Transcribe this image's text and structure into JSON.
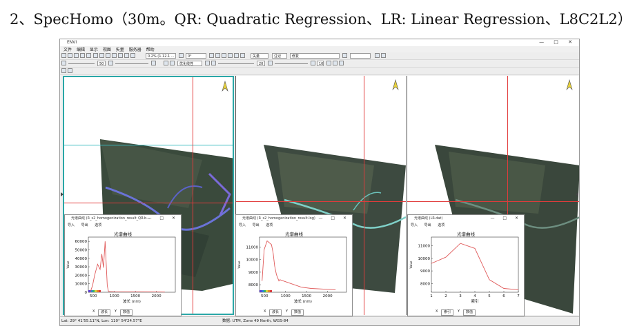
{
  "caption": "2、SpecHomo（30m。QR: Quadratic Regression、LR: Linear Regression、L8C2L2）",
  "app": {
    "title": "ENVI",
    "window_controls": "— □ ✕"
  },
  "menu": [
    "文件",
    "编辑",
    "显示",
    "视图",
    "矢量",
    "服务器",
    "帮助"
  ],
  "toolbar": {
    "coord_box": "0.2% (1.12.1 ...",
    "rotate_box": "0°",
    "zoom_box": "50",
    "stretch_box": "无拉伸",
    "layer_box": "矢量",
    "annotate_box": "注记",
    "vector_box": "修复",
    "view_box": "优化线性",
    "brightness": "50",
    "contrast": "20",
    "sharpen": "10"
  },
  "views": [
    {
      "name": "qr",
      "north_label": "N"
    },
    {
      "name": "log",
      "north_label": "N"
    },
    {
      "name": "lr",
      "north_label": "N"
    }
  ],
  "spectral_panels": [
    {
      "window_title": "光谱曲线 (R_s2_homogenization_result_QR.b...",
      "menu": [
        "导入",
        "导出",
        "选项"
      ],
      "plot_title": "光谱曲线",
      "x_label": "波长 (nm)",
      "y_label": "Value",
      "x_ticks": [
        "500",
        "1000",
        "1500",
        "2000"
      ],
      "y_ticks": [
        "0",
        "10000",
        "20000",
        "30000",
        "40000",
        "50000",
        "60000"
      ],
      "footer": [
        "X",
        "波长",
        "Y",
        "数值"
      ]
    },
    {
      "window_title": "光谱曲线 (R_s2_homogenization_result.log)",
      "menu": [
        "导入",
        "导出",
        "选项"
      ],
      "plot_title": "光谱曲线",
      "x_label": "波长 (nm)",
      "y_label": "Value",
      "x_ticks": [
        "500",
        "1000",
        "1500",
        "2000"
      ],
      "y_ticks": [
        "8000",
        "9000",
        "10000",
        "11000"
      ],
      "footer": [
        "X",
        "波长",
        "Y",
        "数值"
      ]
    },
    {
      "window_title": "光谱曲线 (LR.dat)",
      "menu": [
        "导入",
        "导出",
        "选项"
      ],
      "plot_title": "光谱曲线",
      "x_label": "索引",
      "y_label": "Value",
      "x_ticks": [
        "1",
        "2",
        "3",
        "4",
        "5",
        "6",
        "7"
      ],
      "y_ticks": [
        "8000",
        "9000",
        "10000",
        "11000"
      ],
      "footer": [
        "X",
        "索引",
        "Y",
        "数值"
      ]
    }
  ],
  "status": {
    "left": "Lat: 29° 41'55.11\"N, Lon: 110° 54'24.57\"E",
    "middle": "数据: UTM, Zone 49 North, WGS-84"
  },
  "chart_data": [
    {
      "type": "line",
      "title": "光谱曲线",
      "xlabel": "波长 (nm)",
      "ylabel": "Value",
      "xlim": [
        380,
        2450
      ],
      "ylim": [
        0,
        65000
      ],
      "color": "#e05a5a",
      "x": [
        430,
        480,
        530,
        600,
        660,
        700,
        740,
        780,
        830,
        850,
        860,
        900,
        1000,
        1500,
        2000,
        2200
      ],
      "y": [
        500,
        8000,
        20000,
        33000,
        27000,
        45000,
        29000,
        60000,
        8000,
        3000,
        1000,
        700,
        600,
        450,
        300,
        250
      ]
    },
    {
      "type": "line",
      "title": "光谱曲线",
      "xlabel": "波长 (nm)",
      "ylabel": "Value",
      "xlim": [
        380,
        2450
      ],
      "ylim": [
        7400,
        11800
      ],
      "color": "#e05a5a",
      "x": [
        440,
        490,
        560,
        665,
        705,
        740,
        783,
        842,
        865,
        945,
        1375,
        1610,
        2190
      ],
      "y": [
        8300,
        10800,
        11500,
        11200,
        10500,
        9500,
        8800,
        8300,
        8400,
        8300,
        7800,
        7700,
        7600
      ]
    },
    {
      "type": "line",
      "title": "光谱曲线",
      "xlabel": "索引",
      "ylabel": "Value",
      "xlim": [
        1,
        7
      ],
      "ylim": [
        7300,
        11700
      ],
      "color": "#e05a5a",
      "x": [
        1,
        2,
        3,
        4,
        5,
        6,
        7
      ],
      "y": [
        9600,
        10100,
        11200,
        10800,
        8300,
        7600,
        7500
      ]
    }
  ]
}
